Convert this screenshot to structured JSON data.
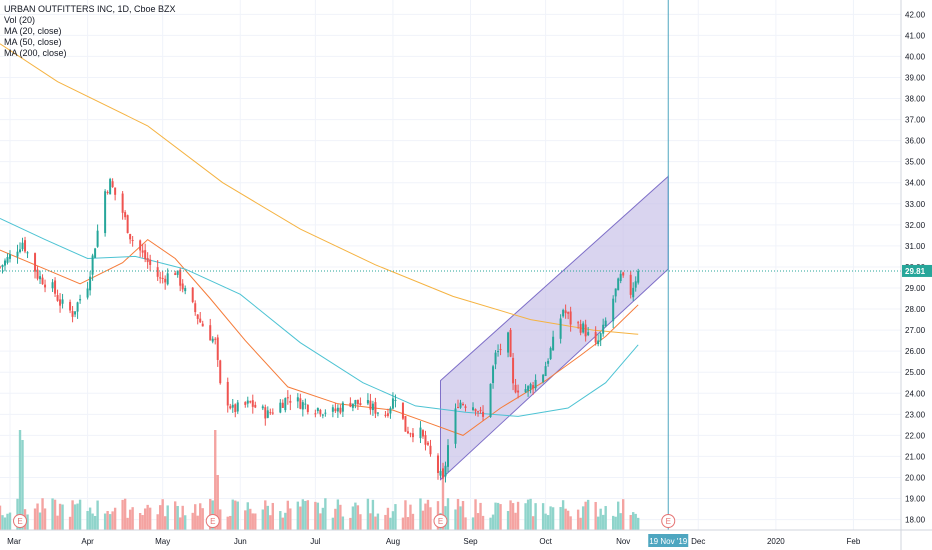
{
  "legend": {
    "symbol": "URBAN OUTFITTERS INC, 1D, Cboe BZX",
    "vol": "Vol (20)",
    "ma20": "MA (20, close)",
    "ma50": "MA (50, close)",
    "ma200": "MA (200, close)"
  },
  "colors": {
    "up": "#26a69a",
    "down": "#ef5350",
    "vol_up": "#8fd4cb",
    "vol_down": "#f4a3a1",
    "ma20": "#f57c3a",
    "ma50": "#4dc3d3",
    "ma200": "#f5b342",
    "channel_fill": "#c5bde6",
    "channel_line": "#7e6fc8",
    "price_badge": "#26a69a",
    "crosshair_badge": "#4ea6c0"
  },
  "price_axis": {
    "ticks": [
      "42.00",
      "41.00",
      "40.00",
      "39.00",
      "38.00",
      "37.00",
      "36.00",
      "35.00",
      "34.00",
      "33.00",
      "32.00",
      "31.00",
      "30.00",
      "29.00",
      "28.00",
      "27.00",
      "26.00",
      "25.00",
      "24.00",
      "23.00",
      "22.00",
      "21.00",
      "20.00",
      "19.00",
      "18.00"
    ],
    "last_price": "29.81"
  },
  "time_axis": {
    "labels": [
      "Mar",
      "Apr",
      "May",
      "Jun",
      "Jul",
      "Aug",
      "Sep",
      "Oct",
      "Nov",
      "Dec",
      "2020",
      "Feb"
    ],
    "crosshair_label": "19 Nov '19"
  },
  "earnings_marker": "E",
  "chart_data": {
    "type": "candlestick",
    "title": "URBAN OUTFITTERS INC, 1D, Cboe BZX",
    "ylim": [
      17.6,
      42.3
    ],
    "x_range": [
      "2019-02-25",
      "2020-02-20"
    ],
    "earnings_dates": [
      "2019-03-05",
      "2019-05-21",
      "2019-08-20",
      "2019-11-19"
    ],
    "crosshair_date": "2019-11-19",
    "last_price": 29.81,
    "price_anchors": [
      [
        "2019-02-25",
        30.0
      ],
      [
        "2019-03-01",
        30.5
      ],
      [
        "2019-03-06",
        31.2
      ],
      [
        "2019-03-12",
        29.6
      ],
      [
        "2019-03-18",
        29.0
      ],
      [
        "2019-03-21",
        28.3
      ],
      [
        "2019-03-26",
        27.8
      ],
      [
        "2019-04-01",
        29.2
      ],
      [
        "2019-04-05",
        31.7
      ],
      [
        "2019-04-08",
        33.6
      ],
      [
        "2019-04-10",
        34.0
      ],
      [
        "2019-04-15",
        32.6
      ],
      [
        "2019-04-18",
        31.5
      ],
      [
        "2019-04-24",
        30.4
      ],
      [
        "2019-04-30",
        29.4
      ],
      [
        "2019-05-06",
        29.8
      ],
      [
        "2019-05-10",
        28.8
      ],
      [
        "2019-05-16",
        27.4
      ],
      [
        "2019-05-22",
        26.4
      ],
      [
        "2019-05-24",
        24.3
      ],
      [
        "2019-05-29",
        23.2
      ],
      [
        "2019-06-05",
        23.5
      ],
      [
        "2019-06-12",
        23.0
      ],
      [
        "2019-06-20",
        23.8
      ],
      [
        "2019-06-28",
        23.4
      ],
      [
        "2019-07-08",
        23.1
      ],
      [
        "2019-07-15",
        23.6
      ],
      [
        "2019-07-22",
        23.4
      ],
      [
        "2019-07-29",
        23.0
      ],
      [
        "2019-08-02",
        23.9
      ],
      [
        "2019-08-06",
        22.3
      ],
      [
        "2019-08-12",
        22.1
      ],
      [
        "2019-08-16",
        21.0
      ],
      [
        "2019-08-21",
        19.8
      ],
      [
        "2019-08-23",
        21.5
      ],
      [
        "2019-08-27",
        23.6
      ],
      [
        "2019-09-03",
        23.4
      ],
      [
        "2019-09-06",
        22.8
      ],
      [
        "2019-09-11",
        25.8
      ],
      [
        "2019-09-16",
        26.6
      ],
      [
        "2019-09-18",
        24.3
      ],
      [
        "2019-09-24",
        24.2
      ],
      [
        "2019-09-30",
        25.0
      ],
      [
        "2019-10-04",
        26.4
      ],
      [
        "2019-10-08",
        28.0
      ],
      [
        "2019-10-11",
        27.4
      ],
      [
        "2019-10-16",
        27.1
      ],
      [
        "2019-10-21",
        26.2
      ],
      [
        "2019-10-24",
        27.0
      ],
      [
        "2019-10-28",
        28.5
      ],
      [
        "2019-10-31",
        29.5
      ],
      [
        "2019-11-04",
        28.8
      ],
      [
        "2019-11-07",
        29.81
      ]
    ],
    "volume": {
      "spikes": [
        [
          "2019-03-05",
          1.0
        ],
        [
          "2019-03-06",
          0.9
        ],
        [
          "2019-05-22",
          1.0
        ],
        [
          "2019-05-23",
          0.55
        ],
        [
          "2019-08-21",
          0.55
        ]
      ]
    },
    "moving_averages": [
      {
        "name": "MA (20, close)",
        "points": [
          [
            "2019-02-25",
            30.8
          ],
          [
            "2019-03-15",
            29.9
          ],
          [
            "2019-03-29",
            29.2
          ],
          [
            "2019-04-15",
            30.2
          ],
          [
            "2019-04-25",
            31.3
          ],
          [
            "2019-05-06",
            30.4
          ],
          [
            "2019-05-20",
            28.5
          ],
          [
            "2019-06-03",
            26.5
          ],
          [
            "2019-06-20",
            24.3
          ],
          [
            "2019-07-10",
            23.5
          ],
          [
            "2019-08-01",
            23.2
          ],
          [
            "2019-08-15",
            22.6
          ],
          [
            "2019-08-29",
            22.0
          ],
          [
            "2019-09-13",
            23.3
          ],
          [
            "2019-10-01",
            24.6
          ],
          [
            "2019-10-15",
            25.8
          ],
          [
            "2019-10-25",
            26.7
          ],
          [
            "2019-11-07",
            28.2
          ]
        ]
      },
      {
        "name": "MA (50, close)",
        "points": [
          [
            "2019-02-25",
            32.3
          ],
          [
            "2019-03-15",
            31.3
          ],
          [
            "2019-04-01",
            30.4
          ],
          [
            "2019-04-20",
            30.5
          ],
          [
            "2019-05-10",
            29.9
          ],
          [
            "2019-06-01",
            28.7
          ],
          [
            "2019-06-25",
            26.4
          ],
          [
            "2019-07-20",
            24.5
          ],
          [
            "2019-08-10",
            23.4
          ],
          [
            "2019-08-30",
            23.1
          ],
          [
            "2019-09-20",
            22.9
          ],
          [
            "2019-10-10",
            23.3
          ],
          [
            "2019-10-25",
            24.5
          ],
          [
            "2019-11-07",
            26.3
          ]
        ]
      },
      {
        "name": "MA (200, close)",
        "points": [
          [
            "2019-02-25",
            40.6
          ],
          [
            "2019-03-20",
            38.8
          ],
          [
            "2019-04-25",
            36.7
          ],
          [
            "2019-05-25",
            34.0
          ],
          [
            "2019-06-25",
            31.8
          ],
          [
            "2019-07-25",
            30.1
          ],
          [
            "2019-08-25",
            28.6
          ],
          [
            "2019-09-25",
            27.5
          ],
          [
            "2019-10-20",
            27.0
          ],
          [
            "2019-11-07",
            26.8
          ]
        ]
      }
    ],
    "channel": {
      "lower": [
        [
          "2019-08-20",
          19.9
        ],
        [
          "2019-11-19",
          29.9
        ]
      ],
      "upper": [
        [
          "2019-08-20",
          24.6
        ],
        [
          "2019-11-19",
          34.3
        ]
      ]
    }
  }
}
